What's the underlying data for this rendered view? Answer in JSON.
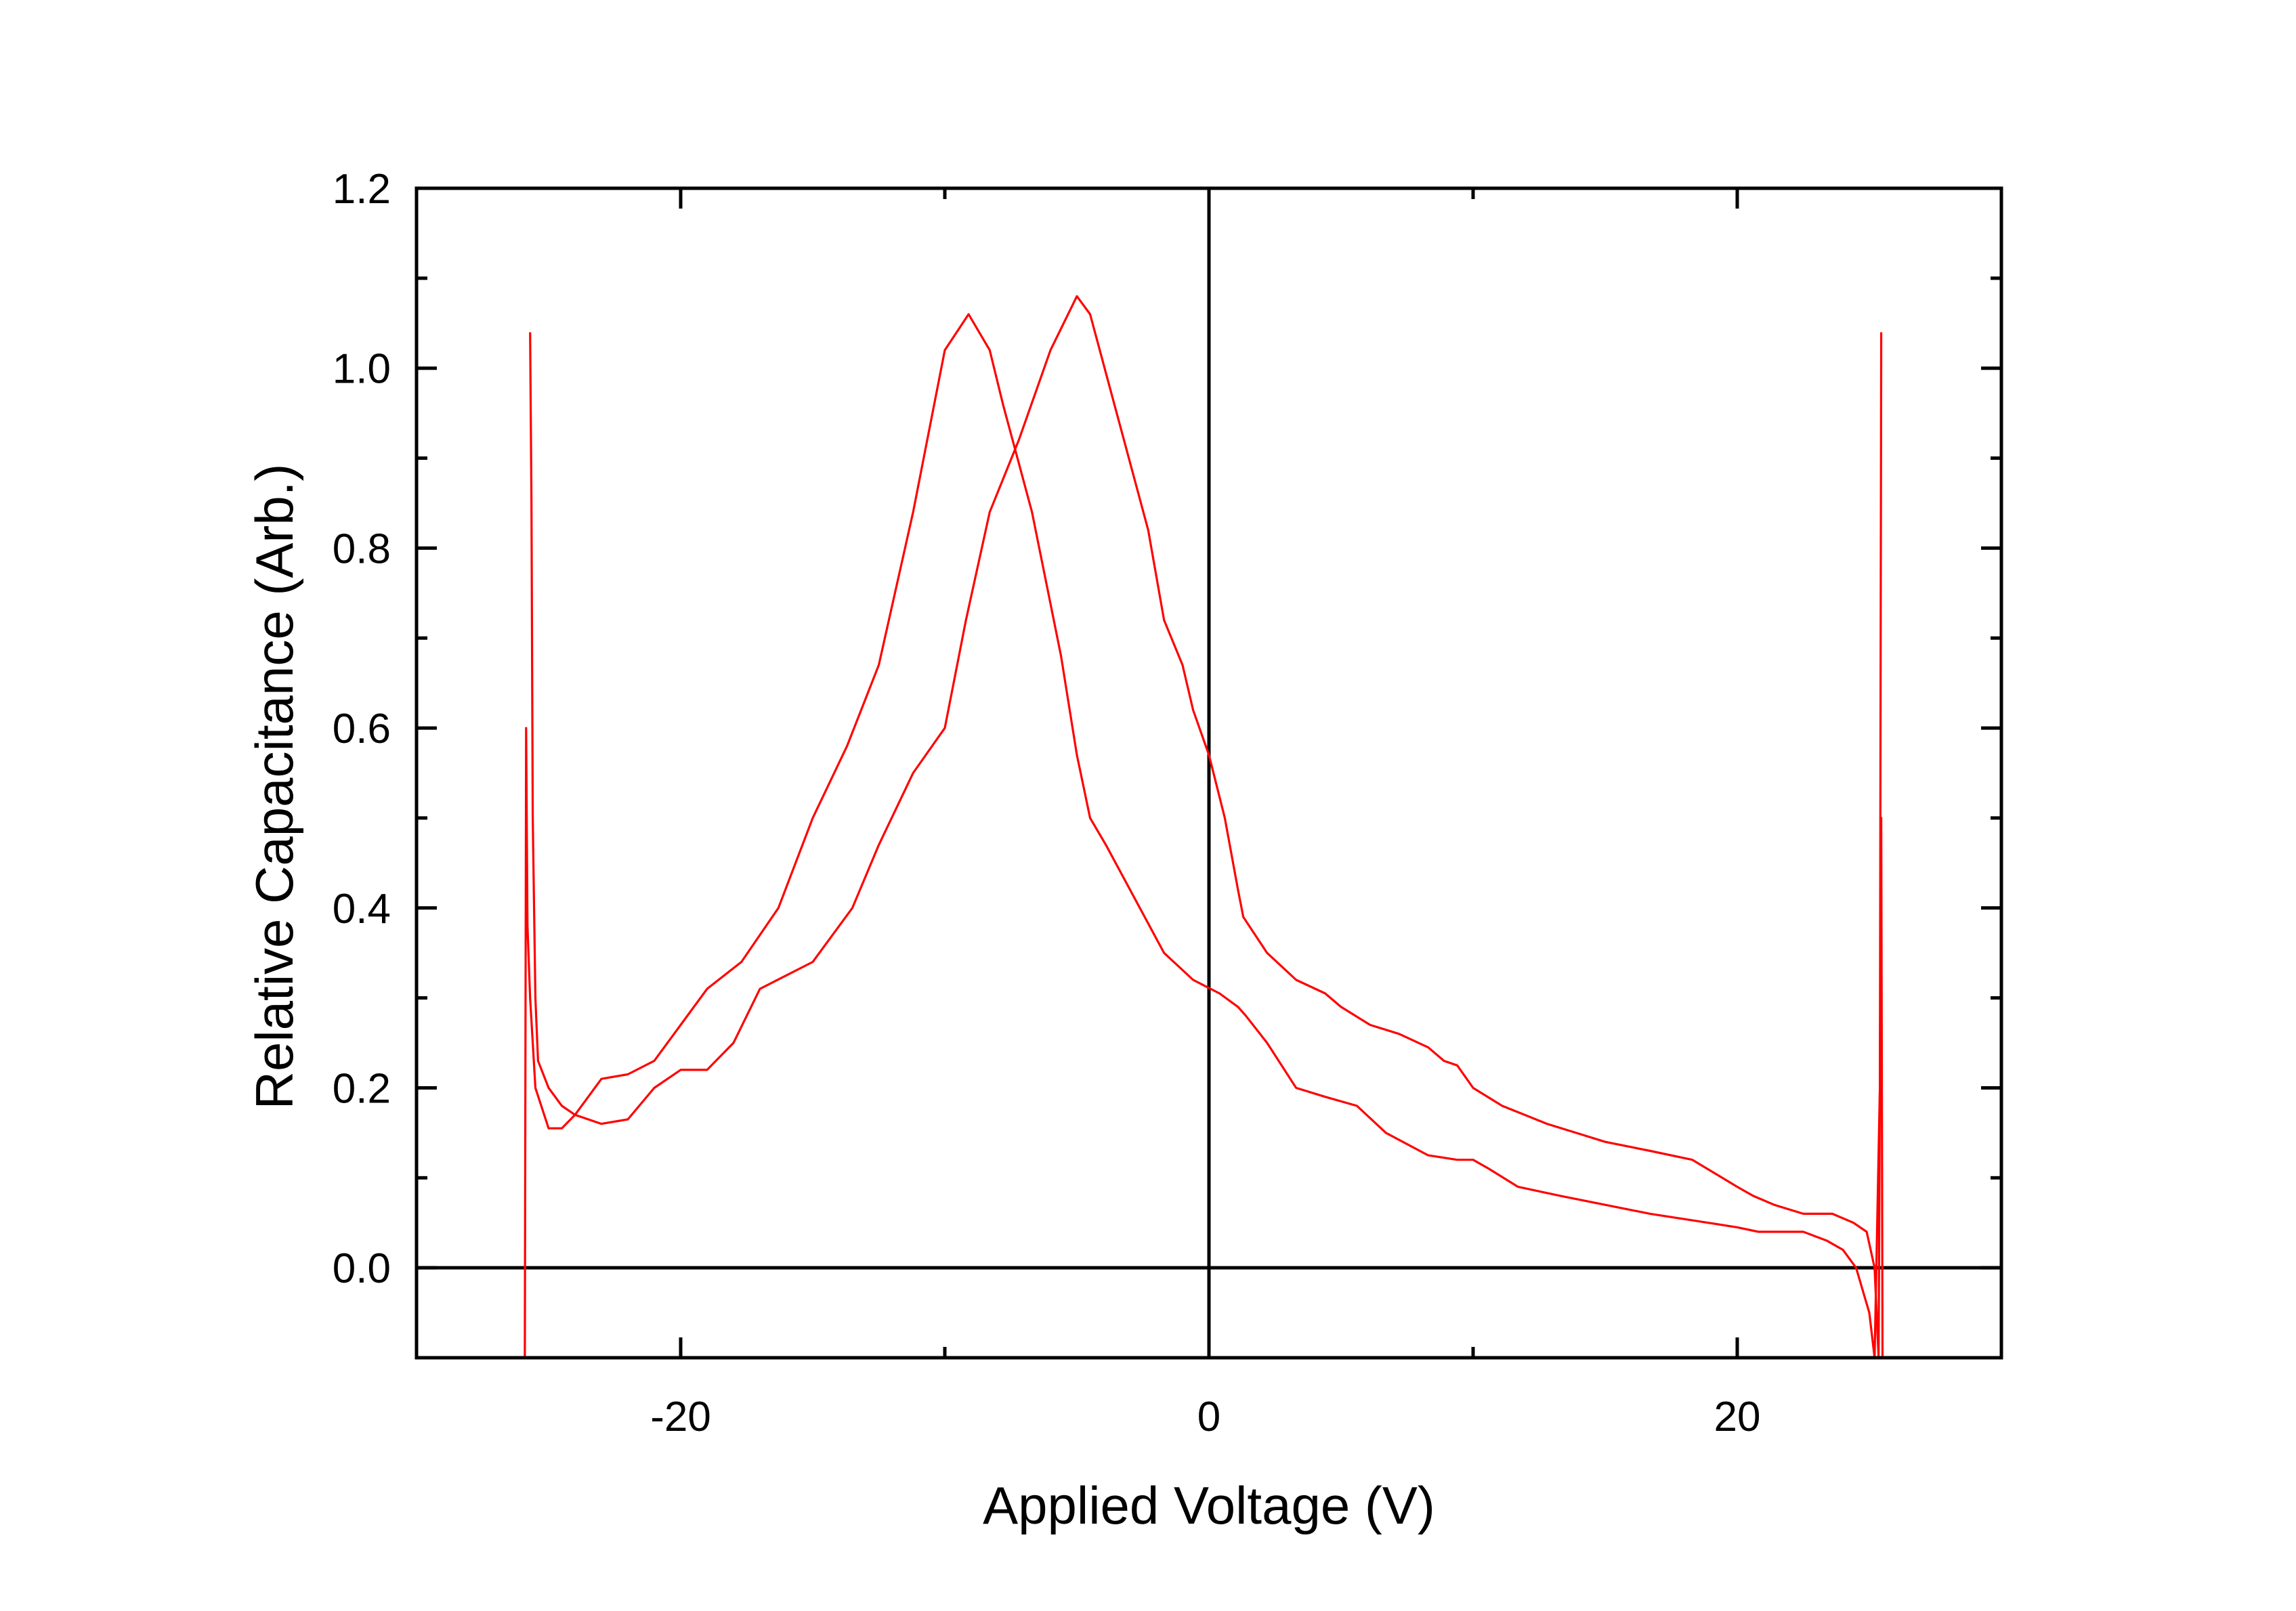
{
  "chart_data": {
    "type": "line",
    "title": "",
    "xlabel": "Applied Voltage (V)",
    "ylabel": "Relative Capacitance (Arb.)",
    "xlim": [
      -30,
      30
    ],
    "ylim": [
      -0.1,
      1.2
    ],
    "x_ticks": [
      -20,
      0,
      20
    ],
    "x_tick_labels": [
      "-20",
      "0",
      "20"
    ],
    "y_ticks": [
      0.0,
      0.2,
      0.4,
      0.6,
      0.8,
      1.0,
      1.2
    ],
    "y_tick_labels": [
      "0.0",
      "0.2",
      "0.4",
      "0.6",
      "0.8",
      "1.0",
      "1.2"
    ],
    "grid": false,
    "legend": "none",
    "reference_lines": [
      {
        "axis": "x",
        "value": 0
      },
      {
        "axis": "y",
        "value": 0
      }
    ],
    "line_color": "#ff0000",
    "series": [
      {
        "x": [
          -25.9,
          -25.85,
          -25.8,
          -25.7,
          -25.5,
          -25.0,
          -24.5,
          -24.0,
          -23.0,
          -22.0,
          -21.0,
          -20.0,
          -19.0,
          -17.7,
          -16.3,
          -15.0,
          -13.7,
          -12.5,
          -11.2,
          -10.0,
          -9.1,
          -8.3,
          -7.8,
          -6.7,
          -5.6,
          -5.0,
          -4.5,
          -3.9,
          -2.8,
          -1.7,
          -0.6,
          0.4,
          1.1,
          1.4,
          2.2,
          3.3,
          4.4,
          5.6,
          6.7,
          8.3,
          9.4,
          10.0,
          10.6,
          11.7,
          13.3,
          15.0,
          16.7,
          17.8,
          18.9,
          20.0,
          20.8,
          21.7,
          22.5,
          23.4,
          24.0,
          24.5,
          25.0,
          25.2,
          25.4,
          25.45,
          25.5
        ],
        "y": [
          -0.1,
          0.6,
          0.38,
          0.3,
          0.2,
          0.155,
          0.155,
          0.17,
          0.21,
          0.215,
          0.23,
          0.27,
          0.31,
          0.34,
          0.4,
          0.5,
          0.58,
          0.67,
          0.84,
          1.02,
          1.06,
          1.02,
          0.96,
          0.84,
          0.68,
          0.57,
          0.5,
          0.47,
          0.41,
          0.35,
          0.32,
          0.305,
          0.29,
          0.28,
          0.25,
          0.2,
          0.19,
          0.18,
          0.15,
          0.125,
          0.12,
          0.12,
          0.11,
          0.09,
          0.08,
          0.07,
          0.06,
          0.055,
          0.05,
          0.045,
          0.04,
          0.04,
          0.04,
          0.03,
          0.02,
          0.0,
          -0.05,
          -0.1,
          0.2,
          0.5,
          -0.1
        ]
      },
      {
        "x": [
          -25.7,
          -25.65,
          -25.6,
          -25.5,
          -25.4,
          -25.0,
          -24.5,
          -24.0,
          -23.0,
          -22.0,
          -21.0,
          -20.0,
          -19.0,
          -18.0,
          -17.0,
          -15.0,
          -13.5,
          -12.5,
          -11.2,
          -10.0,
          -9.2,
          -8.3,
          -7.2,
          -6.0,
          -5.0,
          -4.5,
          -3.4,
          -2.3,
          -1.7,
          -1.0,
          -0.6,
          0.0,
          0.6,
          1.1,
          1.3,
          2.2,
          3.3,
          4.4,
          5.0,
          6.1,
          7.2,
          8.3,
          8.9,
          9.4,
          10.0,
          11.1,
          12.8,
          13.9,
          15.0,
          16.7,
          18.3,
          20.0,
          20.6,
          21.4,
          22.5,
          23.6,
          24.4,
          24.9,
          25.2,
          25.35,
          25.4,
          25.45
        ],
        "y": [
          1.04,
          0.85,
          0.5,
          0.3,
          0.23,
          0.2,
          0.18,
          0.17,
          0.16,
          0.165,
          0.2,
          0.22,
          0.22,
          0.25,
          0.31,
          0.34,
          0.4,
          0.47,
          0.55,
          0.6,
          0.72,
          0.84,
          0.92,
          1.02,
          1.08,
          1.06,
          0.94,
          0.82,
          0.72,
          0.67,
          0.62,
          0.57,
          0.5,
          0.42,
          0.39,
          0.35,
          0.32,
          0.305,
          0.29,
          0.27,
          0.26,
          0.245,
          0.23,
          0.225,
          0.2,
          0.18,
          0.16,
          0.15,
          0.14,
          0.13,
          0.12,
          0.09,
          0.08,
          0.07,
          0.06,
          0.06,
          0.05,
          0.04,
          0.0,
          -0.1,
          0.2,
          1.04
        ]
      }
    ]
  }
}
